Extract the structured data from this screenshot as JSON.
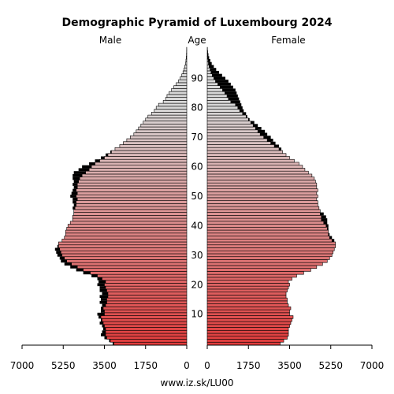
{
  "chart_data": {
    "type": "bar",
    "orientation": "horizontal-pyramid",
    "title": "Demographic Pyramid of Luxembourg 2024",
    "left_label": "Male",
    "center_label": "Age",
    "right_label": "Female",
    "footer": "www.iz.sk/LU00",
    "xlim": [
      0,
      7000
    ],
    "x_ticks": [
      7000,
      5250,
      3500,
      1750,
      0
    ],
    "x_tick_labels": [
      "7000",
      "5250",
      "3500",
      "1750",
      "0"
    ],
    "right_ticks": [
      0,
      1750,
      3500,
      5250,
      7000
    ],
    "right_tick_labels": [
      "0",
      "1750",
      "3500",
      "5250",
      "7000"
    ],
    "age_ticks": [
      10,
      20,
      30,
      40,
      50,
      60,
      70,
      80,
      90
    ],
    "age_range": [
      0,
      100
    ],
    "colors": {
      "young": "#e03c3c",
      "old": "#d8d8d8",
      "excess": "#000000"
    },
    "ages": [
      0,
      1,
      2,
      3,
      4,
      5,
      6,
      7,
      8,
      9,
      10,
      11,
      12,
      13,
      14,
      15,
      16,
      17,
      18,
      19,
      20,
      21,
      22,
      23,
      24,
      25,
      26,
      27,
      28,
      29,
      30,
      31,
      32,
      33,
      34,
      35,
      36,
      37,
      38,
      39,
      40,
      41,
      42,
      43,
      44,
      45,
      46,
      47,
      48,
      49,
      50,
      51,
      52,
      53,
      54,
      55,
      56,
      57,
      58,
      59,
      60,
      61,
      62,
      63,
      64,
      65,
      66,
      67,
      68,
      69,
      70,
      71,
      72,
      73,
      74,
      75,
      76,
      77,
      78,
      79,
      80,
      81,
      82,
      83,
      84,
      85,
      86,
      87,
      88,
      89,
      90,
      91,
      92,
      93,
      94,
      95,
      96,
      97,
      98,
      99,
      100
    ],
    "series": [
      {
        "name": "Male",
        "values": [
          3150,
          3300,
          3500,
          3650,
          3600,
          3550,
          3600,
          3700,
          3650,
          3750,
          3800,
          3650,
          3650,
          3600,
          3700,
          3650,
          3700,
          3600,
          3700,
          3700,
          3800,
          3750,
          3800,
          4050,
          4400,
          4700,
          4950,
          5200,
          5350,
          5400,
          5500,
          5550,
          5600,
          5500,
          5450,
          5300,
          5200,
          5150,
          5150,
          5100,
          5050,
          4950,
          4850,
          4850,
          4800,
          4800,
          4850,
          4800,
          4850,
          4850,
          4950,
          4900,
          4850,
          4800,
          4850,
          4800,
          4850,
          4850,
          4800,
          4600,
          4450,
          4150,
          3900,
          3650,
          3450,
          3250,
          3050,
          2850,
          2700,
          2550,
          2400,
          2250,
          2150,
          2050,
          1950,
          1850,
          1750,
          1650,
          1500,
          1380,
          1300,
          1200,
          1000,
          900,
          840,
          750,
          650,
          550,
          450,
          350,
          280,
          210,
          160,
          120,
          80,
          50,
          35,
          20,
          12,
          7,
          5
        ]
      },
      {
        "name": "Female",
        "values": [
          3100,
          3250,
          3400,
          3450,
          3450,
          3450,
          3500,
          3550,
          3600,
          3650,
          3500,
          3500,
          3550,
          3450,
          3400,
          3400,
          3350,
          3350,
          3400,
          3450,
          3500,
          3450,
          3600,
          3800,
          4100,
          4400,
          4650,
          4900,
          5100,
          5200,
          5300,
          5350,
          5400,
          5450,
          5450,
          5400,
          5300,
          5200,
          5150,
          5150,
          5150,
          5100,
          5100,
          5050,
          4950,
          4800,
          4750,
          4700,
          4700,
          4650,
          4700,
          4650,
          4700,
          4650,
          4650,
          4600,
          4550,
          4450,
          4300,
          4150,
          4050,
          3900,
          3700,
          3500,
          3350,
          3200,
          3150,
          3050,
          2900,
          2800,
          2700,
          2550,
          2450,
          2300,
          2150,
          2000,
          1800,
          1700,
          1650,
          1550,
          1500,
          1450,
          1400,
          1350,
          1300,
          1250,
          1200,
          1100,
          1000,
          900,
          770,
          630,
          500,
          380,
          280,
          190,
          130,
          80,
          50,
          30,
          18
        ]
      }
    ]
  }
}
